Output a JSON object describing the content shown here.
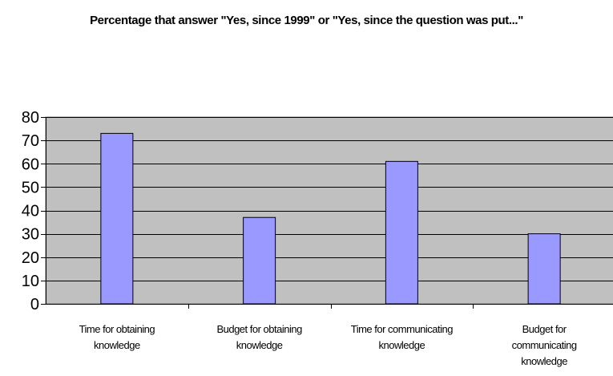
{
  "chart_data": {
    "type": "bar",
    "title": "Percentage that answer \"Yes, since 1999\" or \"Yes, since the question was put...\"",
    "xlabel": "",
    "ylabel": "",
    "categories": [
      "Time for obtaining knowledge",
      "Budget for obtaining knowledge",
      "Time for communicating knowledge",
      "Budget for communicating knowledge"
    ],
    "category_lines": [
      [
        "Time for obtaining",
        "knowledge"
      ],
      [
        "Budget for obtaining",
        "knowledge"
      ],
      [
        "Time for communicating",
        "knowledge"
      ],
      [
        "Budget for",
        "communicating",
        "knowledge"
      ]
    ],
    "values": [
      73,
      37,
      61,
      30
    ],
    "ylim": [
      0,
      80
    ],
    "yticks": [
      0,
      10,
      20,
      30,
      40,
      50,
      60,
      70,
      80
    ],
    "grid": true,
    "legend": "none",
    "colors": {
      "bar_fill": "#9999ff",
      "bar_stroke": "#000000",
      "plot_background": "#c0c0c0",
      "gridline": "#000000",
      "axis": "#000000"
    }
  }
}
